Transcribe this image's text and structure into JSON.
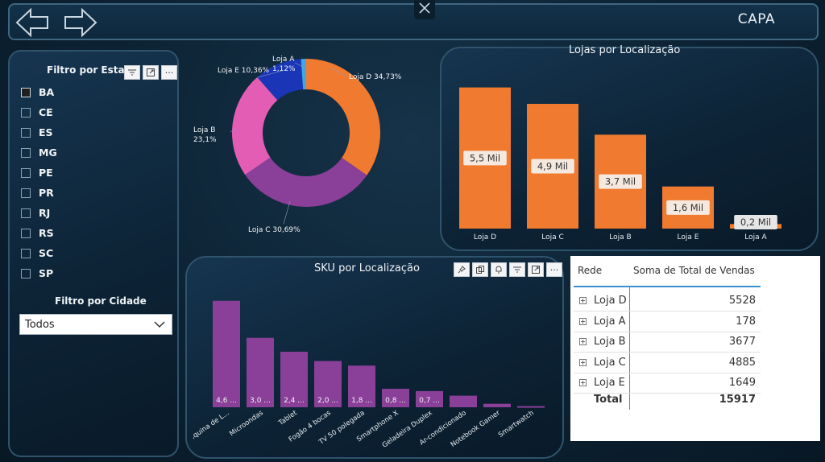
{
  "header": {
    "title": "CAPA",
    "back_icon": "arrow-left-icon",
    "forward_icon": "arrow-right-icon",
    "close_icon": "close-icon"
  },
  "filters": {
    "state_title": "Filtro por Estado",
    "states": [
      {
        "label": "BA",
        "checked": true
      },
      {
        "label": "CE",
        "checked": false
      },
      {
        "label": "ES",
        "checked": false
      },
      {
        "label": "MG",
        "checked": false
      },
      {
        "label": "PE",
        "checked": false
      },
      {
        "label": "PR",
        "checked": false
      },
      {
        "label": "RJ",
        "checked": false
      },
      {
        "label": "RS",
        "checked": false
      },
      {
        "label": "SC",
        "checked": false
      },
      {
        "label": "SP",
        "checked": false
      }
    ],
    "city_title": "Filtro por Cidade",
    "city_value": "Todos"
  },
  "colors": {
    "orange": "#f07a2f",
    "purple": "#8a3f98",
    "pink": "#e45db4",
    "blue": "#1a36b6",
    "lightblue": "#3ea7e6"
  },
  "chart_data": [
    {
      "type": "pie",
      "title": "",
      "slices": [
        {
          "label": "Loja D",
          "value": 34.73,
          "text": "Loja D 34,73%"
        },
        {
          "label": "Loja C",
          "value": 30.69,
          "text": "Loja C 30,69%"
        },
        {
          "label": "Loja B",
          "value": 23.1,
          "text": "Loja B 23,1%"
        },
        {
          "label": "Loja E",
          "value": 10.36,
          "text": "Loja E 10,36%"
        },
        {
          "label": "Loja A",
          "value": 1.12,
          "text": "Loja A 1,12%"
        }
      ]
    },
    {
      "type": "bar",
      "title": "Lojas por Localização",
      "categories": [
        "Loja D",
        "Loja C",
        "Loja B",
        "Loja E",
        "Loja A"
      ],
      "values": [
        5528,
        4885,
        3677,
        1649,
        178
      ],
      "data_labels": [
        "5,5 Mil",
        "4,9 Mil",
        "3,7 Mil",
        "1,6 Mil",
        "0,2 Mil"
      ],
      "ylim": [
        0,
        5800
      ]
    },
    {
      "type": "bar",
      "title": "SKU por Localização",
      "categories": [
        "Máquina de L...",
        "Microondas",
        "Tablet",
        "Fogão 4 bocas",
        "TV 50 polegada",
        "Smartphone X",
        "Geladeira Duplex",
        "Ar-condicionado",
        "Notebook Gamer",
        "Smartwatch"
      ],
      "values": [
        4.6,
        3.0,
        2.4,
        2.0,
        1.8,
        0.8,
        0.7,
        0.5,
        0.15,
        0.05
      ],
      "data_labels": [
        "4,6 ...",
        "3,0 ...",
        "2,4 ...",
        "2,0 ...",
        "1,8 ...",
        "0,8 ...",
        "0,7 ...",
        "",
        "",
        ""
      ],
      "ylim": [
        0,
        4.8
      ]
    }
  ],
  "table": {
    "headers": [
      "Rede",
      "Soma de Total de Vendas"
    ],
    "rows": [
      {
        "name": "Loja D",
        "value": "5528"
      },
      {
        "name": "Loja A",
        "value": "178"
      },
      {
        "name": "Loja B",
        "value": "3677"
      },
      {
        "name": "Loja C",
        "value": "4885"
      },
      {
        "name": "Loja E",
        "value": "1649"
      }
    ],
    "total_label": "Total",
    "total_value": "15917"
  }
}
